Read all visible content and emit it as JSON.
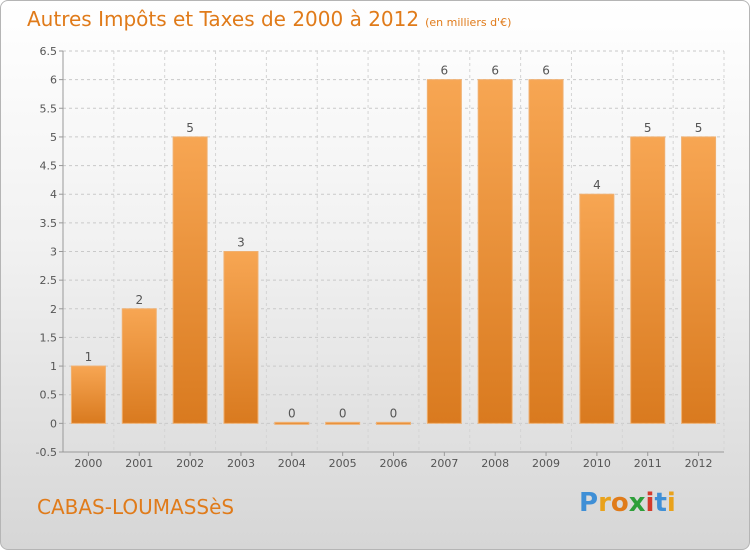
{
  "title": "Autres Impôts et Taxes de 2000 à 2012",
  "unit_label": "(en milliers d'€)",
  "commune": "CABAS-LOUMASSèS",
  "logo": {
    "letters": [
      "P",
      "r",
      "o",
      "x",
      "i",
      "t",
      "i"
    ],
    "colors": [
      "#3f8fd6",
      "#e9a21b",
      "#e07b1a",
      "#2e9f3a",
      "#d43a2c",
      "#3f8fd6",
      "#e9a21b"
    ]
  },
  "colors": {
    "bar_light": "#f7a653",
    "bar_dark": "#d97a1f",
    "title": "#e07b1a"
  },
  "chart_data": {
    "type": "bar",
    "title": "Autres Impôts et Taxes de 2000 à 2012",
    "categories": [
      "2000",
      "2001",
      "2002",
      "2003",
      "2004",
      "2005",
      "2006",
      "2007",
      "2008",
      "2009",
      "2010",
      "2011",
      "2012"
    ],
    "values": [
      1,
      2,
      5,
      3,
      0,
      0,
      0,
      6,
      6,
      6,
      4,
      5,
      5
    ],
    "value_labels": [
      "1",
      "2",
      "5",
      "3",
      "0",
      "0",
      "0",
      "6",
      "6",
      "6",
      "4",
      "5",
      "5"
    ],
    "ylim": [
      -0.5,
      6.5
    ],
    "yticks": [
      -0.5,
      0,
      0.5,
      1,
      1.5,
      2,
      2.5,
      3,
      3.5,
      4,
      4.5,
      5,
      5.5,
      6,
      6.5
    ],
    "ytick_labels": [
      "-0.5",
      "0",
      "0.5",
      "1",
      "1.5",
      "2",
      "2.5",
      "3",
      "3.5",
      "4",
      "4.5",
      "5",
      "5.5",
      "6",
      "6.5"
    ],
    "grid": true,
    "xlabel": "",
    "ylabel": ""
  }
}
